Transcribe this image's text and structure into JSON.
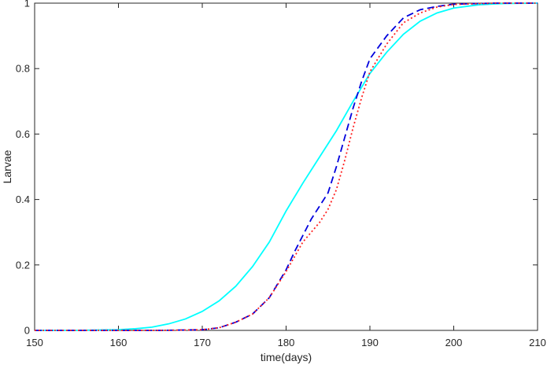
{
  "chart_data": {
    "type": "line",
    "title": "",
    "xlabel": "time(days)",
    "ylabel": "Larvae",
    "xlim": [
      150,
      210
    ],
    "ylim": [
      0,
      1
    ],
    "xticks": [
      150,
      160,
      170,
      180,
      190,
      200,
      210
    ],
    "yticks": [
      0,
      0.2,
      0.4,
      0.6,
      0.8,
      1
    ],
    "xtick_labels": [
      "150",
      "160",
      "170",
      "180",
      "190",
      "200",
      "210"
    ],
    "ytick_labels": [
      "0",
      "0.2",
      "0.4",
      "0.6",
      "0.8",
      "1"
    ],
    "grid": false,
    "legend": "none",
    "series": [
      {
        "color": "#00ffff",
        "style": "solid",
        "x": [
          150,
          155,
          160,
          162,
          164,
          166,
          168,
          170,
          172,
          174,
          176,
          178,
          180,
          182,
          184,
          186,
          188,
          190,
          192,
          194,
          196,
          198,
          200,
          203,
          206,
          210
        ],
        "y": [
          0,
          0,
          0.002,
          0.005,
          0.01,
          0.02,
          0.035,
          0.058,
          0.09,
          0.135,
          0.195,
          0.27,
          0.365,
          0.45,
          0.53,
          0.61,
          0.7,
          0.785,
          0.85,
          0.905,
          0.945,
          0.97,
          0.985,
          0.995,
          0.999,
          1
        ]
      },
      {
        "color": "#0000dd",
        "style": "dashed",
        "x": [
          150,
          165,
          170,
          172,
          174,
          176,
          178,
          180,
          181,
          182,
          183,
          184,
          185,
          186,
          187,
          188,
          189,
          190,
          192,
          194,
          196,
          198,
          200,
          205,
          210
        ],
        "y": [
          0,
          0,
          0.002,
          0.008,
          0.025,
          0.05,
          0.1,
          0.185,
          0.24,
          0.29,
          0.34,
          0.38,
          0.42,
          0.5,
          0.59,
          0.68,
          0.76,
          0.83,
          0.9,
          0.955,
          0.98,
          0.99,
          0.997,
          1,
          1
        ]
      },
      {
        "color": "#ff2020",
        "style": "dotted",
        "x": [
          150,
          165,
          170,
          172,
          174,
          176,
          178,
          180,
          181,
          182,
          183,
          184,
          185,
          186,
          187,
          188,
          189,
          190,
          192,
          194,
          196,
          198,
          200,
          205,
          210
        ],
        "y": [
          0,
          0,
          0.002,
          0.008,
          0.025,
          0.05,
          0.1,
          0.18,
          0.225,
          0.27,
          0.3,
          0.33,
          0.37,
          0.43,
          0.52,
          0.62,
          0.71,
          0.79,
          0.875,
          0.94,
          0.97,
          0.988,
          0.996,
          1,
          1
        ]
      }
    ]
  }
}
